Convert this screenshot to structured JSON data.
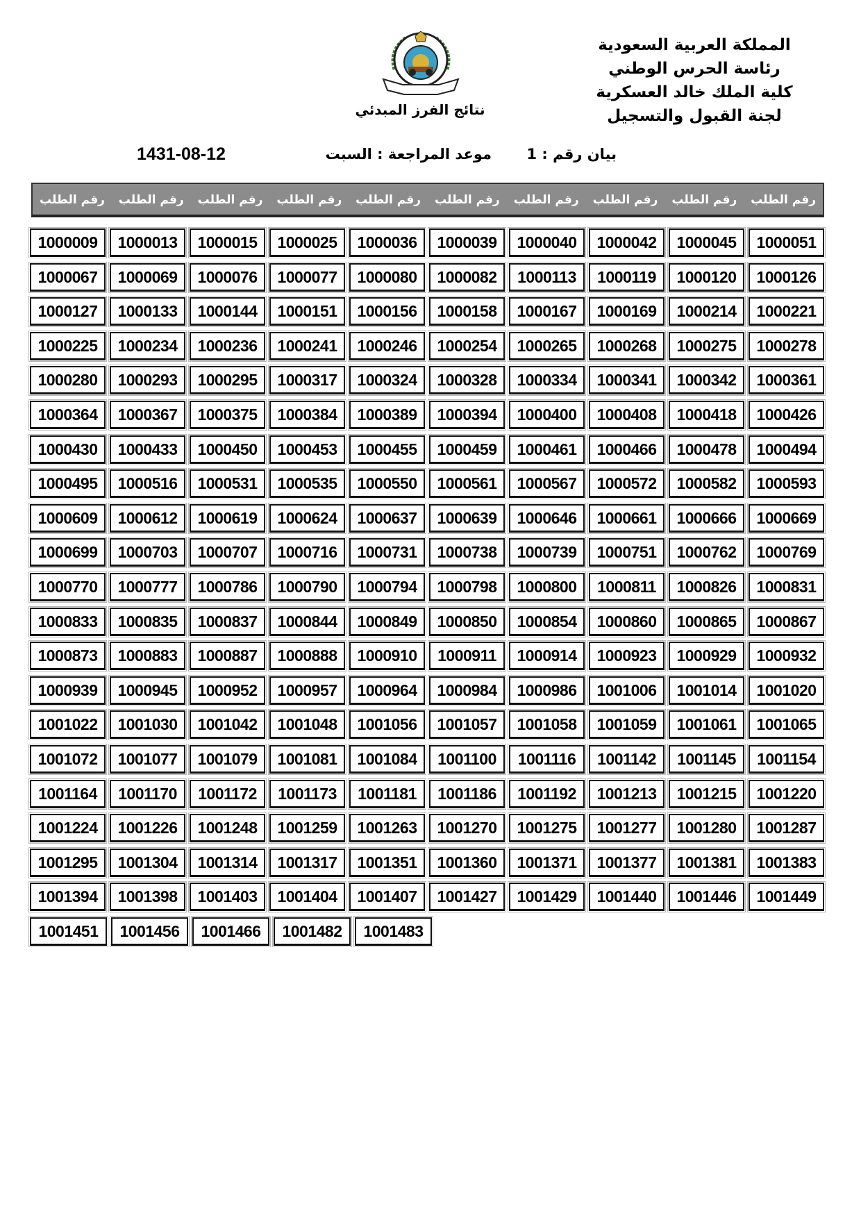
{
  "header": {
    "org_lines": [
      "المملكة العربية السعودية",
      "رئاسة الحرس الوطني",
      "كلية الملك خالد العسكرية",
      "لجنة القبول والتسجيل"
    ],
    "logo": "national-guard-emblem",
    "logo_text": "رئاسة الحرس الوطني",
    "subtitle": "نتائج الفرز المبدئي"
  },
  "info": {
    "statement_no": "بيان رقم : 1",
    "appointment": "موعد المراجعة :   السبت",
    "date": "1431-08-12"
  },
  "table": {
    "column_header": "رقم الطلب",
    "columns": 10,
    "colors": {
      "header_bg": "#8c8c8c",
      "header_text": "#ffffff",
      "border": "#111111"
    },
    "rows": [
      [
        "1000009",
        "1000013",
        "1000015",
        "1000025",
        "1000036",
        "1000039",
        "1000040",
        "1000042",
        "1000045",
        "1000051"
      ],
      [
        "1000067",
        "1000069",
        "1000076",
        "1000077",
        "1000080",
        "1000082",
        "1000113",
        "1000119",
        "1000120",
        "1000126"
      ],
      [
        "1000127",
        "1000133",
        "1000144",
        "1000151",
        "1000156",
        "1000158",
        "1000167",
        "1000169",
        "1000214",
        "1000221"
      ],
      [
        "1000225",
        "1000234",
        "1000236",
        "1000241",
        "1000246",
        "1000254",
        "1000265",
        "1000268",
        "1000275",
        "1000278"
      ],
      [
        "1000280",
        "1000293",
        "1000295",
        "1000317",
        "1000324",
        "1000328",
        "1000334",
        "1000341",
        "1000342",
        "1000361"
      ],
      [
        "1000364",
        "1000367",
        "1000375",
        "1000384",
        "1000389",
        "1000394",
        "1000400",
        "1000408",
        "1000418",
        "1000426"
      ],
      [
        "1000430",
        "1000433",
        "1000450",
        "1000453",
        "1000455",
        "1000459",
        "1000461",
        "1000466",
        "1000478",
        "1000494"
      ],
      [
        "1000495",
        "1000516",
        "1000531",
        "1000535",
        "1000550",
        "1000561",
        "1000567",
        "1000572",
        "1000582",
        "1000593"
      ],
      [
        "1000609",
        "1000612",
        "1000619",
        "1000624",
        "1000637",
        "1000639",
        "1000646",
        "1000661",
        "1000666",
        "1000669"
      ],
      [
        "1000699",
        "1000703",
        "1000707",
        "1000716",
        "1000731",
        "1000738",
        "1000739",
        "1000751",
        "1000762",
        "1000769"
      ],
      [
        "1000770",
        "1000777",
        "1000786",
        "1000790",
        "1000794",
        "1000798",
        "1000800",
        "1000811",
        "1000826",
        "1000831"
      ],
      [
        "1000833",
        "1000835",
        "1000837",
        "1000844",
        "1000849",
        "1000850",
        "1000854",
        "1000860",
        "1000865",
        "1000867"
      ],
      [
        "1000873",
        "1000883",
        "1000887",
        "1000888",
        "1000910",
        "1000911",
        "1000914",
        "1000923",
        "1000929",
        "1000932"
      ],
      [
        "1000939",
        "1000945",
        "1000952",
        "1000957",
        "1000964",
        "1000984",
        "1000986",
        "1001006",
        "1001014",
        "1001020"
      ],
      [
        "1001022",
        "1001030",
        "1001042",
        "1001048",
        "1001056",
        "1001057",
        "1001058",
        "1001059",
        "1001061",
        "1001065"
      ],
      [
        "1001072",
        "1001077",
        "1001079",
        "1001081",
        "1001084",
        "1001100",
        "1001116",
        "1001142",
        "1001145",
        "1001154"
      ],
      [
        "1001164",
        "1001170",
        "1001172",
        "1001173",
        "1001181",
        "1001186",
        "1001192",
        "1001213",
        "1001215",
        "1001220"
      ],
      [
        "1001224",
        "1001226",
        "1001248",
        "1001259",
        "1001263",
        "1001270",
        "1001275",
        "1001277",
        "1001280",
        "1001287"
      ],
      [
        "1001295",
        "1001304",
        "1001314",
        "1001317",
        "1001351",
        "1001360",
        "1001371",
        "1001377",
        "1001381",
        "1001383"
      ],
      [
        "1001394",
        "1001398",
        "1001403",
        "1001404",
        "1001407",
        "1001427",
        "1001429",
        "1001440",
        "1001446",
        "1001449"
      ],
      [
        "1001451",
        "1001456",
        "1001466",
        "1001482",
        "1001483"
      ]
    ]
  }
}
